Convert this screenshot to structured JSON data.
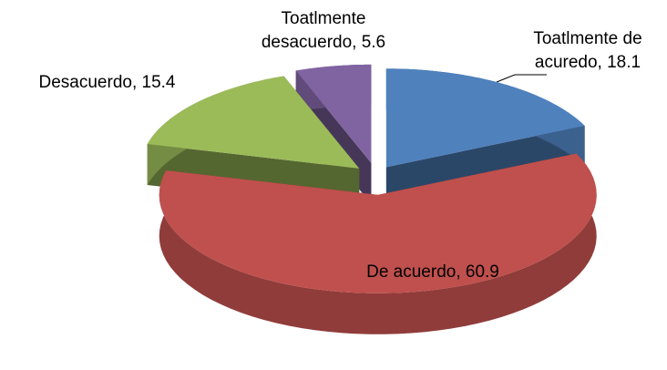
{
  "chart_data": {
    "type": "pie",
    "categories": [
      "Toatlmente de acuredo",
      "De acuerdo",
      "Desacuerdo",
      "Toatlmente desacuerdo"
    ],
    "values": [
      18.1,
      60.9,
      15.4,
      5.6
    ],
    "value_labels": [
      "Toatlmente de acuredo, 18.1",
      "De acuerdo, 60.9",
      "Desacuerdo, 15.4",
      "Toatlmente desacuerdo, 5.6"
    ],
    "colors": [
      "#4f81bd",
      "#c0504d",
      "#9bbb59",
      "#8064a2"
    ]
  }
}
